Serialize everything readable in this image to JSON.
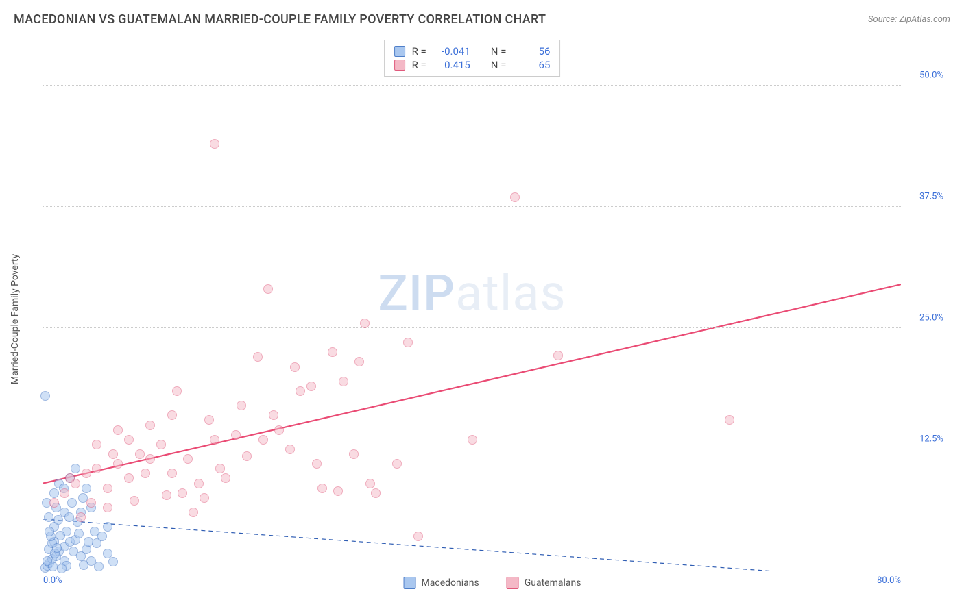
{
  "header": {
    "title": "MACEDONIAN VS GUATEMALAN MARRIED-COUPLE FAMILY POVERTY CORRELATION CHART",
    "source": "Source: ZipAtlas.com"
  },
  "chart": {
    "type": "scatter",
    "ylabel": "Married-Couple Family Poverty",
    "xlim": [
      0,
      80
    ],
    "ylim": [
      0,
      55
    ],
    "xticks": [
      {
        "v": 0,
        "label": "0.0%"
      },
      {
        "v": 80,
        "label": "80.0%"
      }
    ],
    "yticks": [
      {
        "v": 12.5,
        "label": "12.5%"
      },
      {
        "v": 25.0,
        "label": "25.0%"
      },
      {
        "v": 37.5,
        "label": "37.5%"
      },
      {
        "v": 50.0,
        "label": "50.0%"
      }
    ],
    "grid_color": "#cccccc",
    "axis_color": "#999999",
    "background_color": "#ffffff",
    "tick_text_color": "#3b6fd8",
    "watermark": {
      "pre": "ZIP",
      "post": "atlas"
    },
    "series": [
      {
        "name": "Macedonians",
        "marker_fill": "#a9c7ef",
        "marker_stroke": "#4f7fc9",
        "marker_fill_opacity": 0.55,
        "marker_size": 14,
        "regression": {
          "y_at_x0": 5.3,
          "y_at_xmax": -1.0,
          "color": "#2f5db3",
          "dash": "6,5",
          "width": 1.2
        },
        "correlation": {
          "R": "-0.041",
          "N": "56"
        },
        "points": [
          [
            0.2,
            0.3
          ],
          [
            0.4,
            0.5
          ],
          [
            0.6,
            0.8
          ],
          [
            0.8,
            1.2
          ],
          [
            1.2,
            1.5
          ],
          [
            1.5,
            2.0
          ],
          [
            1.0,
            3.0
          ],
          [
            2.0,
            2.5
          ],
          [
            2.5,
            3.0
          ],
          [
            3.0,
            3.2
          ],
          [
            1.0,
            4.5
          ],
          [
            1.4,
            5.2
          ],
          [
            2.2,
            4.0
          ],
          [
            0.5,
            2.2
          ],
          [
            0.8,
            2.8
          ],
          [
            1.6,
            3.6
          ],
          [
            2.8,
            2.0
          ],
          [
            3.5,
            1.5
          ],
          [
            4.0,
            2.2
          ],
          [
            4.5,
            1.0
          ],
          [
            5.0,
            2.8
          ],
          [
            5.5,
            3.5
          ],
          [
            6.0,
            1.8
          ],
          [
            6.5,
            0.9
          ],
          [
            2.0,
            6.0
          ],
          [
            0.3,
            7.0
          ],
          [
            1.0,
            8.0
          ],
          [
            1.5,
            9.0
          ],
          [
            2.5,
            9.5
          ],
          [
            3.0,
            10.5
          ],
          [
            0.2,
            18.0
          ],
          [
            4.0,
            8.5
          ],
          [
            4.5,
            6.5
          ],
          [
            3.2,
            5.0
          ],
          [
            2.0,
            1.0
          ],
          [
            2.2,
            0.5
          ],
          [
            1.7,
            0.2
          ],
          [
            0.9,
            0.4
          ],
          [
            3.8,
            0.6
          ],
          [
            5.2,
            0.4
          ],
          [
            4.8,
            4.0
          ],
          [
            3.5,
            6.0
          ],
          [
            0.5,
            5.5
          ],
          [
            1.2,
            6.5
          ],
          [
            6.0,
            4.5
          ],
          [
            0.7,
            3.5
          ],
          [
            2.7,
            7.0
          ],
          [
            1.9,
            8.5
          ],
          [
            3.3,
            3.8
          ],
          [
            4.2,
            3.0
          ],
          [
            0.4,
            1.0
          ],
          [
            1.1,
            1.8
          ],
          [
            2.4,
            5.5
          ],
          [
            3.7,
            7.5
          ],
          [
            0.6,
            4.0
          ],
          [
            1.3,
            2.3
          ]
        ]
      },
      {
        "name": "Guatemalans",
        "marker_fill": "#f4b8c6",
        "marker_stroke": "#e05a7c",
        "marker_fill_opacity": 0.5,
        "marker_size": 14,
        "regression": {
          "y_at_x0": 9.0,
          "y_at_xmax": 29.5,
          "color": "#ea4b74",
          "dash": "none",
          "width": 2.2
        },
        "correlation": {
          "R": "0.415",
          "N": "65"
        },
        "points": [
          [
            1.0,
            7.0
          ],
          [
            2.0,
            8.0
          ],
          [
            3.0,
            9.0
          ],
          [
            4.0,
            10.0
          ],
          [
            5.0,
            10.5
          ],
          [
            6.0,
            8.5
          ],
          [
            7.0,
            11.0
          ],
          [
            8.0,
            9.5
          ],
          [
            9.0,
            12.0
          ],
          [
            10.0,
            11.5
          ],
          [
            11.0,
            13.0
          ],
          [
            12.0,
            10.0
          ],
          [
            13.0,
            8.0
          ],
          [
            14.0,
            6.0
          ],
          [
            15.0,
            7.5
          ],
          [
            16.0,
            13.5
          ],
          [
            5.0,
            13.0
          ],
          [
            7.0,
            14.5
          ],
          [
            10.0,
            15.0
          ],
          [
            12.0,
            16.0
          ],
          [
            16.0,
            44.0
          ],
          [
            18.0,
            14.0
          ],
          [
            20.0,
            22.0
          ],
          [
            21.0,
            29.0
          ],
          [
            23.0,
            12.5
          ],
          [
            24.0,
            18.5
          ],
          [
            25.0,
            19.0
          ],
          [
            26.0,
            8.5
          ],
          [
            27.0,
            22.5
          ],
          [
            28.0,
            19.5
          ],
          [
            29.0,
            12.0
          ],
          [
            30.0,
            25.5
          ],
          [
            31.0,
            8.0
          ],
          [
            33.0,
            11.0
          ],
          [
            34.0,
            23.5
          ],
          [
            35.0,
            3.5
          ],
          [
            40.0,
            13.5
          ],
          [
            44.0,
            38.5
          ],
          [
            48.0,
            22.2
          ],
          [
            64.0,
            15.5
          ],
          [
            3.5,
            5.5
          ],
          [
            4.5,
            7.0
          ],
          [
            6.0,
            6.5
          ],
          [
            8.5,
            7.2
          ],
          [
            11.5,
            7.8
          ],
          [
            13.5,
            11.5
          ],
          [
            15.5,
            15.5
          ],
          [
            17.0,
            9.5
          ],
          [
            19.0,
            11.8
          ],
          [
            22.0,
            14.5
          ],
          [
            9.5,
            10.0
          ],
          [
            14.5,
            9.0
          ],
          [
            16.5,
            10.5
          ],
          [
            18.5,
            17.0
          ],
          [
            20.5,
            13.5
          ],
          [
            25.5,
            11.0
          ],
          [
            27.5,
            8.2
          ],
          [
            30.5,
            9.0
          ],
          [
            6.5,
            12.0
          ],
          [
            8.0,
            13.5
          ],
          [
            12.5,
            18.5
          ],
          [
            21.5,
            16.0
          ],
          [
            23.5,
            21.0
          ],
          [
            29.5,
            21.5
          ],
          [
            2.5,
            9.5
          ]
        ]
      }
    ],
    "corr_legend_labels": {
      "R": "R =",
      "N": "N ="
    },
    "series_legend_position": "bottom-center"
  }
}
